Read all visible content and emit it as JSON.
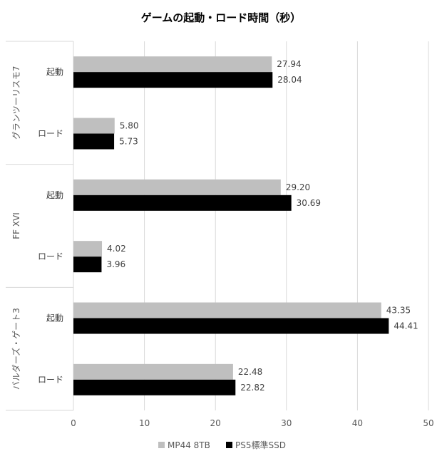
{
  "chart_data": {
    "type": "bar",
    "orientation": "horizontal",
    "title": "ゲームの起動・ロード時間（秒）",
    "xlim": [
      0,
      50
    ],
    "xticks": [
      0,
      10,
      20,
      30,
      40,
      50
    ],
    "grid": true,
    "legend_position": "bottom",
    "groups": [
      {
        "name": "グランツーリスモ7",
        "categories": [
          "起動",
          "ロード"
        ]
      },
      {
        "name": "FF XVI",
        "categories": [
          "起動",
          "ロード"
        ]
      },
      {
        "name": "バルダーズ・ゲート3",
        "categories": [
          "起動",
          "ロード"
        ]
      }
    ],
    "series": [
      {
        "name": "MP44 8TB",
        "color": "#bfbfbf",
        "values": [
          27.94,
          5.8,
          29.2,
          4.02,
          43.35,
          22.48
        ],
        "labels": [
          "27.94",
          "5.80",
          "29.20",
          "4.02",
          "43.35",
          "22.48"
        ]
      },
      {
        "name": "PS5標準SSD",
        "color": "#000000",
        "values": [
          28.04,
          5.73,
          30.69,
          3.96,
          44.41,
          22.82
        ],
        "labels": [
          "28.04",
          "5.73",
          "30.69",
          "3.96",
          "44.41",
          "22.82"
        ]
      }
    ]
  }
}
